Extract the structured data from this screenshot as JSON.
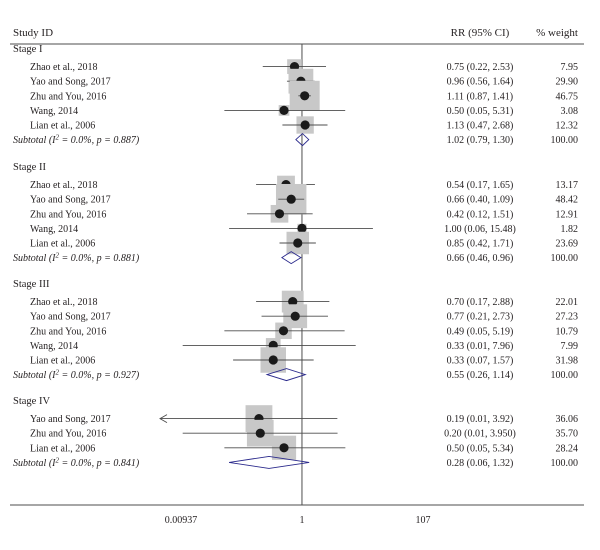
{
  "chart_data": {
    "type": "forest",
    "columns": {
      "study": "Study ID",
      "effect": "RR (95% CI)",
      "weight": "% weight"
    },
    "x_scale": "log",
    "axis_ticks": [
      {
        "value": 0.00937,
        "label": "0.00937"
      },
      {
        "value": 1,
        "label": "1"
      },
      {
        "value": 107,
        "label": "107"
      }
    ],
    "reference_line": 1,
    "groups": [
      {
        "name": "Stage I",
        "studies": [
          {
            "label": "Zhao et al., 2018",
            "rr": 0.75,
            "lo": 0.22,
            "hi": 2.53,
            "ci_text": "0.75 (0.22, 2.53)",
            "weight": 7.95,
            "weight_text": "7.95"
          },
          {
            "label": "Yao and Song, 2017",
            "rr": 0.96,
            "lo": 0.56,
            "hi": 1.64,
            "ci_text": "0.96 (0.56, 1.64)",
            "weight": 29.9,
            "weight_text": "29.90"
          },
          {
            "label": "Zhu and You, 2016",
            "rr": 1.11,
            "lo": 0.87,
            "hi": 1.41,
            "ci_text": "1.11 (0.87, 1.41)",
            "weight": 46.75,
            "weight_text": "46.75"
          },
          {
            "label": "Wang, 2014",
            "rr": 0.5,
            "lo": 0.05,
            "hi": 5.31,
            "ci_text": "0.50 (0.05, 5.31)",
            "weight": 3.08,
            "weight_text": "3.08"
          },
          {
            "label": "Lian et al., 2006",
            "rr": 1.13,
            "lo": 0.47,
            "hi": 2.68,
            "ci_text": "1.13 (0.47, 2.68)",
            "weight": 12.32,
            "weight_text": "12.32"
          }
        ],
        "subtotal": {
          "label_main": "Subtotal (I",
          "label_sup": "2",
          "label_rest": " = 0.0%, p = 0.887)",
          "rr": 1.02,
          "lo": 0.79,
          "hi": 1.3,
          "ci_text": "1.02 (0.79, 1.30)",
          "weight_text": "100.00"
        }
      },
      {
        "name": "Stage II",
        "studies": [
          {
            "label": "Zhao et al., 2018",
            "rr": 0.54,
            "lo": 0.17,
            "hi": 1.65,
            "ci_text": "0.54 (0.17, 1.65)",
            "weight": 13.17,
            "weight_text": "13.17"
          },
          {
            "label": "Yao and Song, 2017",
            "rr": 0.66,
            "lo": 0.4,
            "hi": 1.09,
            "ci_text": "0.66 (0.40, 1.09)",
            "weight": 48.42,
            "weight_text": "48.42"
          },
          {
            "label": "Zhu and You, 2016",
            "rr": 0.42,
            "lo": 0.12,
            "hi": 1.51,
            "ci_text": "0.42 (0.12, 1.51)",
            "weight": 12.91,
            "weight_text": "12.91"
          },
          {
            "label": "Wang, 2014",
            "rr": 1.0,
            "lo": 0.06,
            "hi": 15.48,
            "ci_text": "1.00 (0.06, 15.48)",
            "weight": 1.82,
            "weight_text": "1.82"
          },
          {
            "label": "Lian et al., 2006",
            "rr": 0.85,
            "lo": 0.42,
            "hi": 1.71,
            "ci_text": "0.85 (0.42, 1.71)",
            "weight": 23.69,
            "weight_text": "23.69"
          }
        ],
        "subtotal": {
          "label_main": "Subtotal (I",
          "label_sup": "2",
          "label_rest": " = 0.0%, p = 0.881)",
          "rr": 0.66,
          "lo": 0.46,
          "hi": 0.96,
          "ci_text": "0.66 (0.46, 0.96)",
          "weight_text": "100.00"
        }
      },
      {
        "name": "Stage III",
        "studies": [
          {
            "label": "Zhao et al., 2018",
            "rr": 0.7,
            "lo": 0.17,
            "hi": 2.88,
            "ci_text": "0.70 (0.17, 2.88)",
            "weight": 22.01,
            "weight_text": "22.01"
          },
          {
            "label": "Yao and Song, 2017",
            "rr": 0.77,
            "lo": 0.21,
            "hi": 2.73,
            "ci_text": "0.77 (0.21, 2.73)",
            "weight": 27.23,
            "weight_text": "27.23"
          },
          {
            "label": "Zhu and You, 2016",
            "rr": 0.49,
            "lo": 0.05,
            "hi": 5.19,
            "ci_text": "0.49 (0.05, 5.19)",
            "weight": 10.79,
            "weight_text": "10.79"
          },
          {
            "label": "Wang, 2014",
            "rr": 0.33,
            "lo": 0.01,
            "hi": 7.96,
            "ci_text": "0.33 (0.01, 7.96)",
            "weight": 7.99,
            "weight_text": "7.99"
          },
          {
            "label": "Lian et al., 2006",
            "rr": 0.33,
            "lo": 0.07,
            "hi": 1.57,
            "ci_text": "0.33 (0.07, 1.57)",
            "weight": 31.98,
            "weight_text": "31.98"
          }
        ],
        "subtotal": {
          "label_main": "Subtotal (I",
          "label_sup": "2",
          "label_rest": " = 0.0%, p = 0.927)",
          "rr": 0.55,
          "lo": 0.26,
          "hi": 1.14,
          "ci_text": "0.55 (0.26, 1.14)",
          "weight_text": "100.00"
        }
      },
      {
        "name": "Stage IV",
        "studies": [
          {
            "label": "Yao and Song, 2017",
            "rr": 0.19,
            "lo": 0.01,
            "hi": 3.92,
            "ci_text": "0.19 (0.01, 3.92)",
            "weight": 36.06,
            "weight_text": "36.06",
            "arrow_left": true
          },
          {
            "label": "Zhu and You, 2016",
            "rr": 0.2,
            "lo": 0.01,
            "hi": 3.95,
            "ci_text": "0.20 (0.01, 3.950)",
            "weight": 35.7,
            "weight_text": "35.70"
          },
          {
            "label": "Lian et al., 2006",
            "rr": 0.5,
            "lo": 0.05,
            "hi": 5.34,
            "ci_text": "0.50 (0.05, 5.34)",
            "weight": 28.24,
            "weight_text": "28.24"
          }
        ],
        "subtotal": {
          "label_main": "Subtotal (I",
          "label_sup": "2",
          "label_rest": " = 0.0%, p = 0.841)",
          "rr": 0.28,
          "lo": 0.06,
          "hi": 1.32,
          "ci_text": "0.28 (0.06, 1.32)",
          "weight_text": "100.00"
        }
      }
    ],
    "colors": {
      "box": "#c8c8c8",
      "point": "#1a1a1a",
      "diamond": "#2b2a8c",
      "line": "#4d4d4d",
      "text": "#231f20"
    }
  }
}
